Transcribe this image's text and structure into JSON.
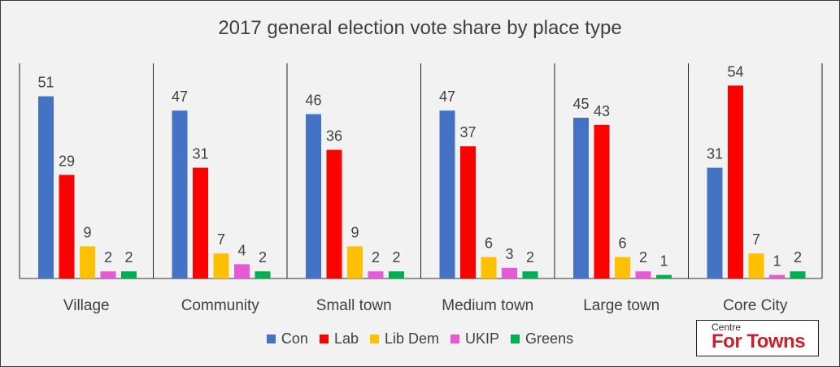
{
  "chart_data": {
    "type": "bar",
    "title": "2017 general election vote share by place type",
    "categories": [
      "Village",
      "Community",
      "Small town",
      "Medium town",
      "Large town",
      "Core City"
    ],
    "series": [
      {
        "name": "Con",
        "color": "#4472c4",
        "values": [
          51,
          47,
          46,
          47,
          45,
          31
        ]
      },
      {
        "name": "Lab",
        "color": "#ff0000",
        "values": [
          29,
          31,
          36,
          37,
          43,
          54
        ]
      },
      {
        "name": "Lib Dem",
        "color": "#ffc000",
        "values": [
          9,
          7,
          9,
          6,
          6,
          7
        ]
      },
      {
        "name": "UKIP",
        "color": "#e65ad6",
        "values": [
          2,
          4,
          2,
          3,
          2,
          1
        ]
      },
      {
        "name": "Greens",
        "color": "#00b050",
        "values": [
          2,
          2,
          2,
          2,
          1,
          2
        ]
      }
    ],
    "ylim": [
      0,
      60
    ],
    "grid": false,
    "legend_position": "bottom",
    "data_labels": true
  },
  "logo": {
    "line1": "Centre",
    "line2": "For Towns"
  }
}
